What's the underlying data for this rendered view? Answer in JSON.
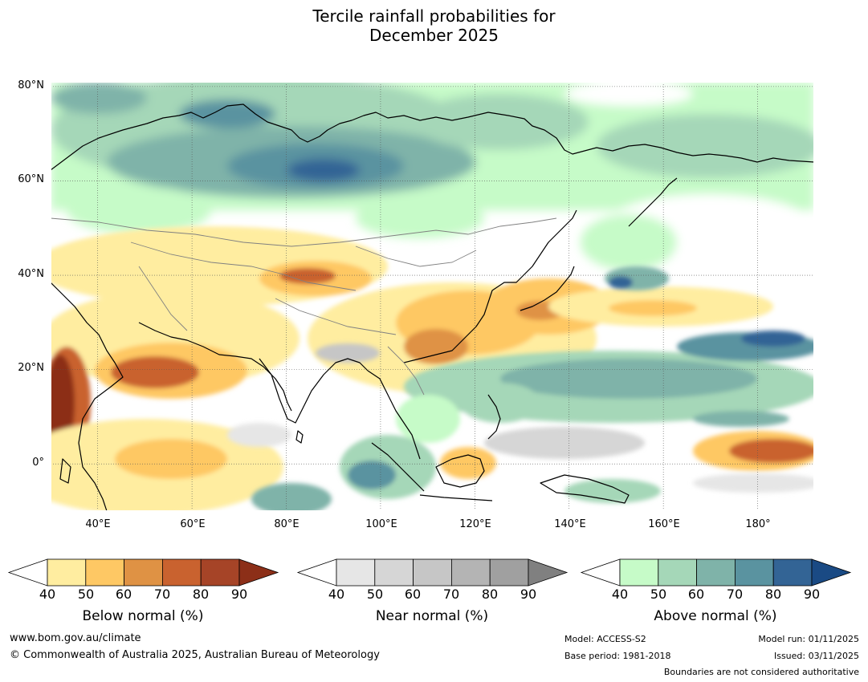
{
  "title_line1": "Tercile rainfall probabilities for",
  "title_line2": "December 2025",
  "map": {
    "lon_range": [
      30,
      192
    ],
    "lat_range": [
      -10,
      81
    ],
    "lat_ticks": [
      {
        "label": "80°N",
        "value": 80
      },
      {
        "label": "60°N",
        "value": 60
      },
      {
        "label": "40°N",
        "value": 40
      },
      {
        "label": "20°N",
        "value": 20
      },
      {
        "label": "0°",
        "value": 0
      }
    ],
    "lon_ticks": [
      {
        "label": "40°E",
        "value": 40
      },
      {
        "label": "60°E",
        "value": 60
      },
      {
        "label": "80°E",
        "value": 80
      },
      {
        "label": "100°E",
        "value": 100
      },
      {
        "label": "120°E",
        "value": 120
      },
      {
        "label": "140°E",
        "value": 140
      },
      {
        "label": "160°E",
        "value": 160
      },
      {
        "label": "180°",
        "value": 180
      }
    ],
    "coastline_color": "#000000",
    "boundary_color": "#808080",
    "grid_color": "#555555"
  },
  "colorbars": [
    {
      "title": "Below normal (%)",
      "ticks": [
        "40",
        "50",
        "60",
        "70",
        "80",
        "90"
      ],
      "colors": [
        "#ffffff",
        "#ffeda0",
        "#fec864",
        "#df9244",
        "#c9622f",
        "#a64427",
        "#8c2f18"
      ]
    },
    {
      "title": "Near normal (%)",
      "ticks": [
        "40",
        "50",
        "60",
        "70",
        "80",
        "90"
      ],
      "colors": [
        "#ffffff",
        "#e6e6e6",
        "#d6d6d6",
        "#c6c6c6",
        "#b4b4b4",
        "#a0a0a0",
        "#808080"
      ]
    },
    {
      "title": "Above normal (%)",
      "ticks": [
        "40",
        "50",
        "60",
        "70",
        "80",
        "90"
      ],
      "colors": [
        "#ffffff",
        "#c6fbc8",
        "#a5d7b8",
        "#7fb3a9",
        "#5a93a0",
        "#336495",
        "#1a4a84"
      ]
    }
  ],
  "footer": {
    "website": "www.bom.gov.au/climate",
    "copyright": "© Commonwealth of Australia 2025, Australian Bureau of Meteorology",
    "model": "Model: ACCESS-S2",
    "base_period": "Base period: 1981-2018",
    "model_run": "Model run: 01/11/2025",
    "issued": "Issued: 03/11/2025",
    "disclaimer": "Boundaries are not considered authoritative"
  }
}
